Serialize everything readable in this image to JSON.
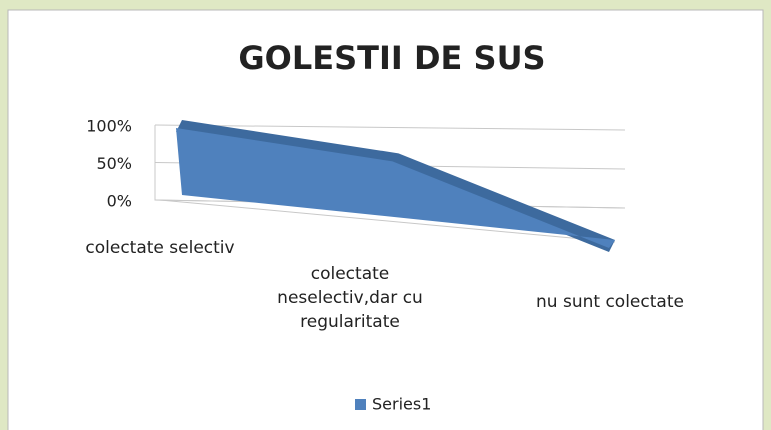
{
  "chart_data": {
    "type": "area3d",
    "title": "GOLESTII DE SUS",
    "categories": [
      "colectate selectiv",
      "colectate neselectiv,dar cu regularitate",
      "nu sunt colectate"
    ],
    "series": [
      {
        "name": "Series1",
        "color": "#4f81bd",
        "values": [
          100,
          95,
          0
        ]
      }
    ],
    "ylim": [
      0,
      100
    ],
    "yticks": [
      {
        "value": 0,
        "label": "0%"
      },
      {
        "value": 50,
        "label": "50%"
      },
      {
        "value": 100,
        "label": "100%"
      }
    ],
    "grid": true,
    "legend": "bottom"
  }
}
